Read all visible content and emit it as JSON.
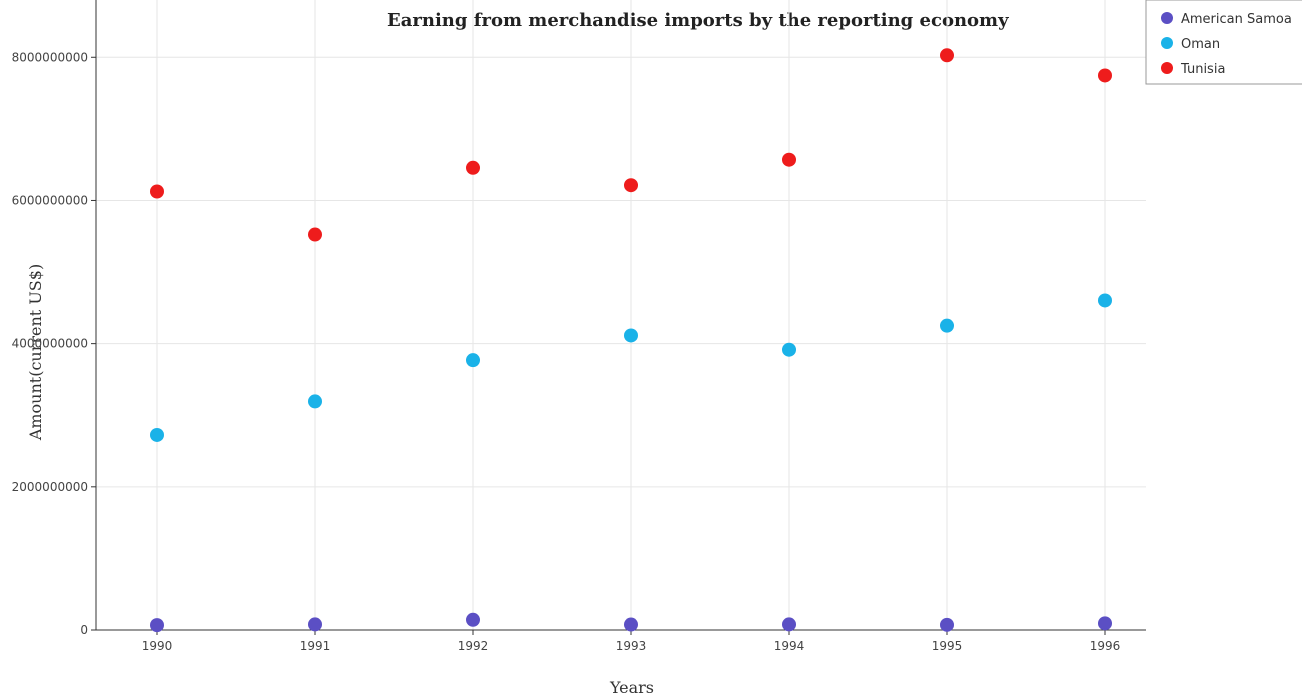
{
  "chart_data": {
    "type": "scatter",
    "title": "Earning from merchandise imports by the reporting economy",
    "xlabel": "Years",
    "ylabel": "Amount(current US$)",
    "categories": [
      "1990",
      "1991",
      "1992",
      "1993",
      "1994",
      "1995",
      "1996"
    ],
    "ylim": [
      0,
      8800000000
    ],
    "yticks": [
      0,
      2000000000,
      4000000000,
      6000000000,
      8000000000
    ],
    "ytick_labels": [
      "0",
      "2000000000",
      "4000000000",
      "6000000000",
      "8000000000"
    ],
    "grid": true,
    "legend_position": "top-right",
    "series": [
      {
        "name": "American Samoa",
        "color": "#5b4fc4",
        "values": [
          68000000,
          78000000,
          143000000,
          76000000,
          78000000,
          72000000,
          93000000
        ]
      },
      {
        "name": "Oman",
        "color": "#1ab2e8",
        "values": [
          2724000000,
          3193000000,
          3769000000,
          4114000000,
          3915000000,
          4251000000,
          4603000000
        ]
      },
      {
        "name": "Tunisia",
        "color": "#ee1c1c",
        "values": [
          6125000000,
          5524000000,
          6456000000,
          6213000000,
          6569000000,
          8028000000,
          7746000000
        ]
      }
    ]
  }
}
